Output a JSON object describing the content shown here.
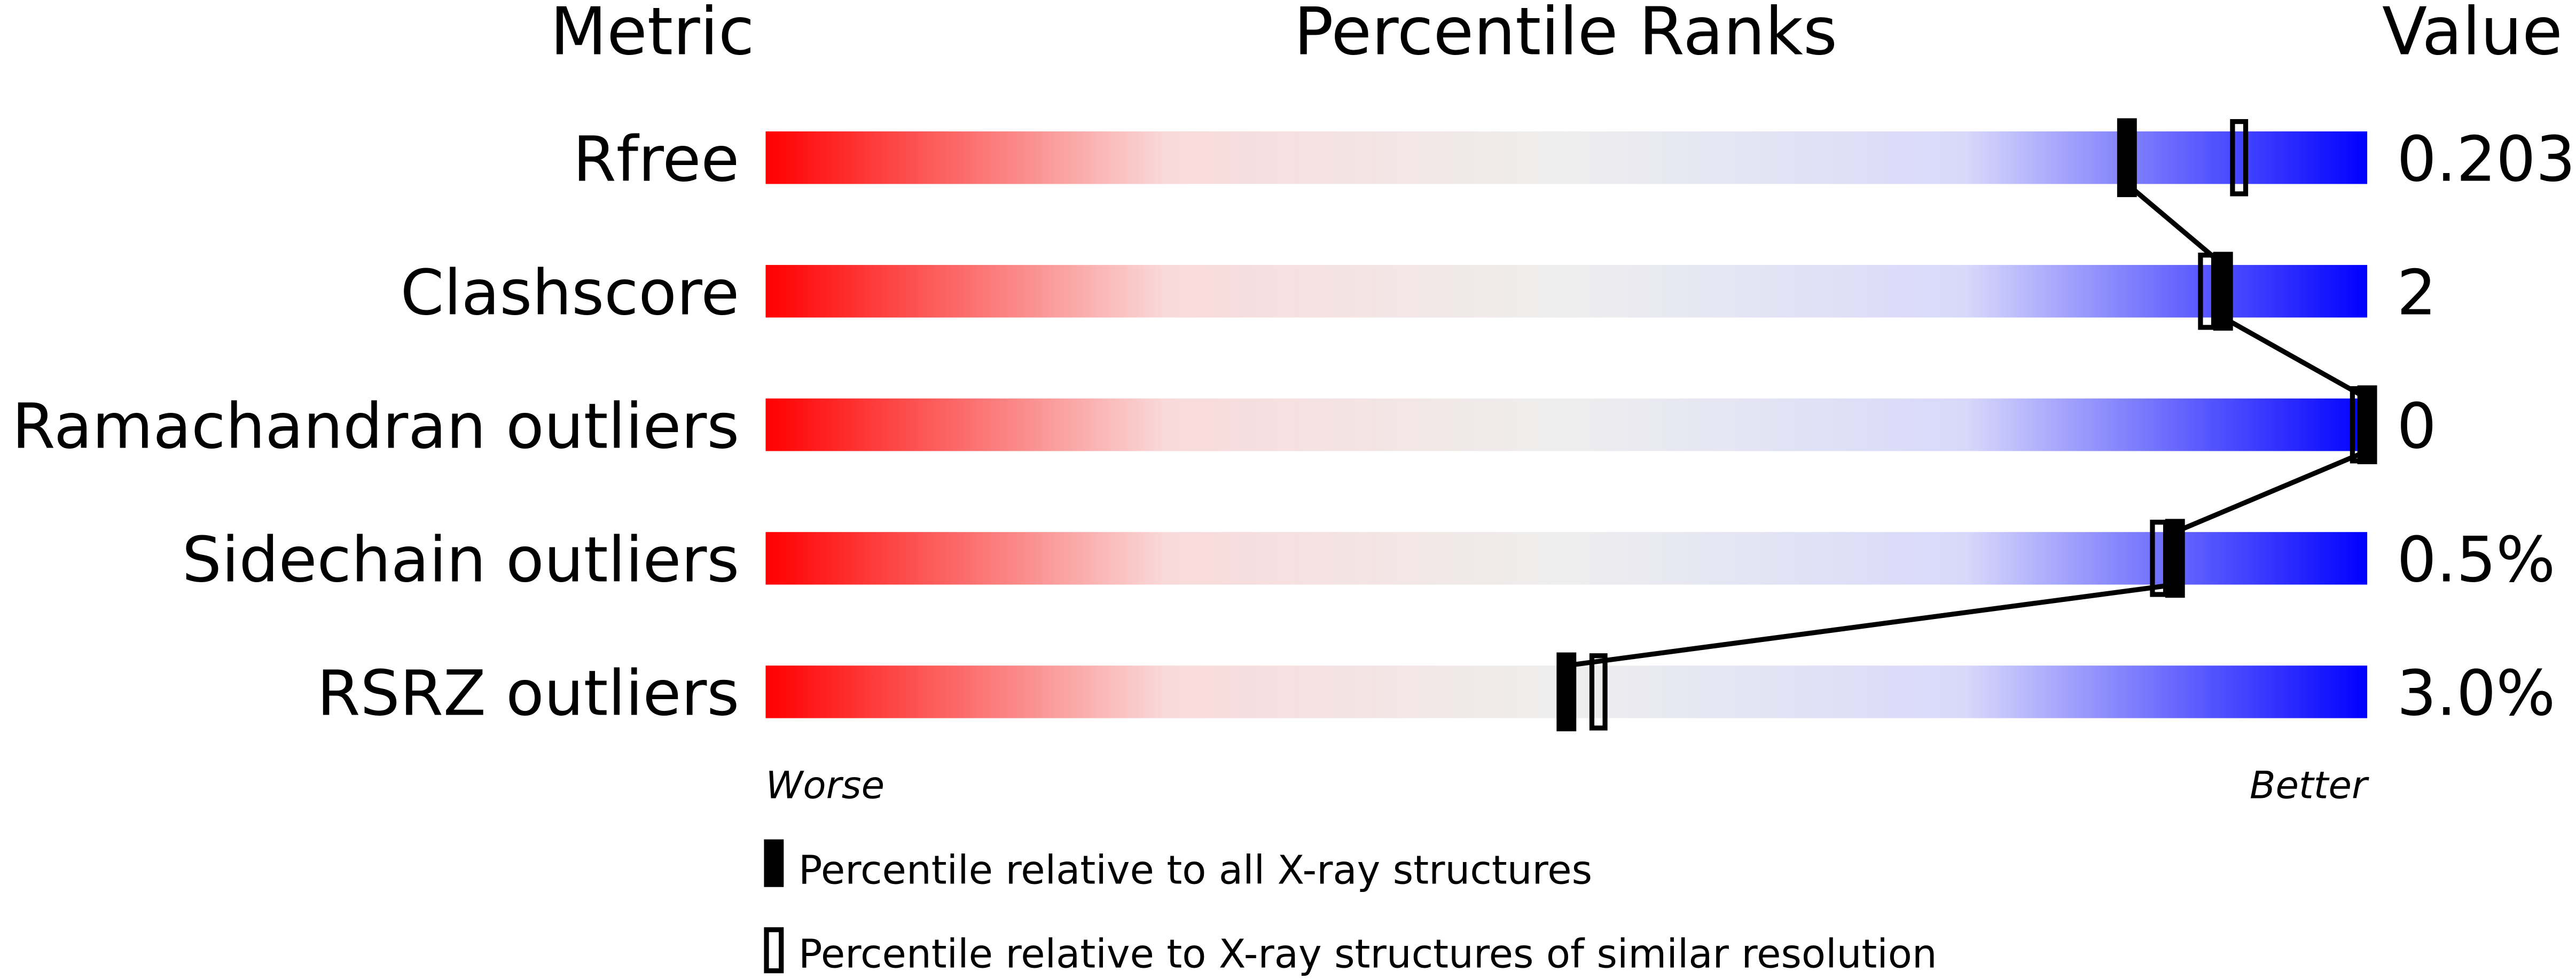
{
  "chart_data": {
    "type": "percentile-slider",
    "headers": {
      "metric": "Metric",
      "ranks": "Percentile Ranks",
      "value": "Value"
    },
    "xlim": [
      0,
      100
    ],
    "axis_labels": {
      "left": "Worse",
      "right": "Better"
    },
    "gradient_colors": [
      "#ff0000",
      "#f9dada",
      "#eeeeee",
      "#d8d8fb",
      "#0000ff"
    ],
    "metrics": [
      {
        "name": "Rfree",
        "value": "0.203",
        "percentile_all": 85,
        "percentile_similar": 92
      },
      {
        "name": "Clashscore",
        "value": "2",
        "percentile_all": 91,
        "percentile_similar": 90
      },
      {
        "name": "Ramachandran outliers",
        "value": "0",
        "percentile_all": 100,
        "percentile_similar": 100
      },
      {
        "name": "Sidechain outliers",
        "value": "0.5%",
        "percentile_all": 88,
        "percentile_similar": 87
      },
      {
        "name": "RSRZ outliers",
        "value": "3.0%",
        "percentile_all": 50,
        "percentile_similar": 52
      }
    ],
    "legend": [
      {
        "marker": "filled",
        "label": "Percentile relative to all X-ray structures"
      },
      {
        "marker": "open",
        "label": "Percentile relative to X-ray structures of similar resolution"
      }
    ]
  }
}
